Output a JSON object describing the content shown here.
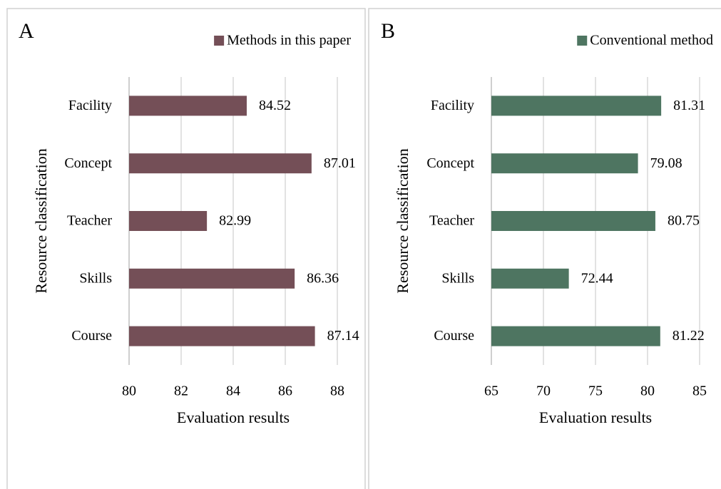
{
  "chart_data": [
    {
      "type": "bar",
      "orientation": "horizontal",
      "panel": "A",
      "xlabel": "Evaluation results",
      "ylabel": "Resource classification",
      "categories": [
        "Facility",
        "Concept",
        "Teacher",
        "Skills",
        "Course"
      ],
      "series": [
        {
          "name": "Methods in this paper",
          "color": "#744f57",
          "values": [
            84.52,
            87.01,
            82.99,
            86.36,
            87.14
          ]
        }
      ],
      "xlim": [
        80,
        88
      ],
      "xticks": [
        80,
        82,
        84,
        86,
        88
      ],
      "grid": true,
      "legend": "top-right"
    },
    {
      "type": "bar",
      "orientation": "horizontal",
      "panel": "B",
      "xlabel": "Evaluation results",
      "ylabel": "Resource classification",
      "categories": [
        "Facility",
        "Concept",
        "Teacher",
        "Skills",
        "Course"
      ],
      "series": [
        {
          "name": "Conventional method",
          "color": "#4e7561",
          "values": [
            81.31,
            79.08,
            80.75,
            72.44,
            81.22
          ]
        }
      ],
      "xlim": [
        65,
        85
      ],
      "xticks": [
        65,
        70,
        75,
        80,
        85
      ],
      "grid": true,
      "legend": "top-right"
    }
  ]
}
